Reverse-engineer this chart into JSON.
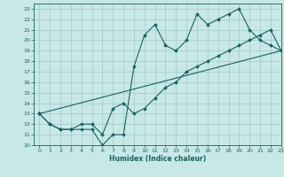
{
  "title": "",
  "xlabel": "Humidex (Indice chaleur)",
  "bg_color": "#c8e8e8",
  "grid_color": "#a0c8c8",
  "line_color": "#1a6060",
  "xlim": [
    -0.5,
    23
  ],
  "ylim": [
    10,
    23.5
  ],
  "xticks": [
    0,
    1,
    2,
    3,
    4,
    5,
    6,
    7,
    8,
    9,
    10,
    11,
    12,
    13,
    14,
    15,
    16,
    17,
    18,
    19,
    20,
    21,
    22,
    23
  ],
  "yticks": [
    10,
    11,
    12,
    13,
    14,
    15,
    16,
    17,
    18,
    19,
    20,
    21,
    22,
    23
  ],
  "line1_x": [
    0,
    1,
    2,
    3,
    4,
    5,
    6,
    7,
    8,
    9,
    10,
    11,
    12,
    13,
    14,
    15,
    16,
    17,
    18,
    19,
    20,
    21,
    22,
    23
  ],
  "line1_y": [
    13,
    12,
    11.5,
    11.5,
    11.5,
    11.5,
    10,
    11,
    11,
    17.5,
    20.5,
    21.5,
    19.5,
    19,
    20,
    22.5,
    21.5,
    22,
    22.5,
    23,
    21,
    20,
    19.5,
    19
  ],
  "line2_x": [
    0,
    1,
    2,
    3,
    4,
    5,
    6,
    7,
    8,
    9,
    10,
    11,
    12,
    13,
    14,
    15,
    16,
    17,
    18,
    19,
    20,
    21,
    22,
    23
  ],
  "line2_y": [
    13,
    12,
    11.5,
    11.5,
    12,
    12,
    11,
    13.5,
    14,
    13,
    13.5,
    14.5,
    15.5,
    16,
    17,
    17.5,
    18,
    18.5,
    19,
    19.5,
    20,
    20.5,
    21,
    19
  ],
  "line3_x": [
    0,
    23
  ],
  "line3_y": [
    13,
    19
  ]
}
